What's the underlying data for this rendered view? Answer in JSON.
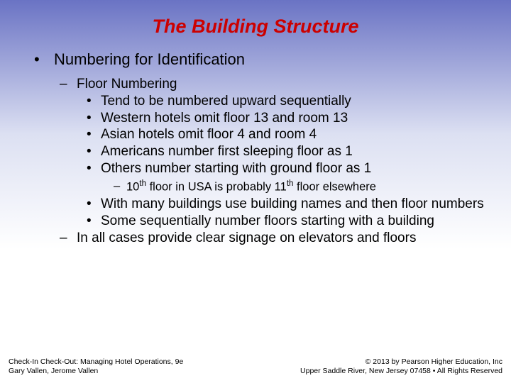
{
  "title_color": "#cc0000",
  "body_color": "#000000",
  "title": "The Building Structure",
  "bullets": {
    "l1_1": "Numbering for Identification",
    "l2_1": "Floor Numbering",
    "l3_1": "Tend to be numbered upward sequentially",
    "l3_2": "Western hotels omit floor 13 and room 13",
    "l3_3": "Asian hotels omit floor 4 and room 4",
    "l3_4": "Americans number first sleeping floor as 1",
    "l3_5": "Others number starting with ground floor as 1",
    "l4_1_pre": "10",
    "l4_1_sup1": "th",
    "l4_1_mid": " floor in USA is probably 11",
    "l4_1_sup2": "th",
    "l4_1_post": " floor elsewhere",
    "l3_6": "With many buildings use building names and then floor numbers",
    "l3_7": "Some sequentially number floors starting with a building",
    "l2_2": "In all cases provide clear signage on elevators and floors"
  },
  "footer": {
    "left_line1": "Check-In Check-Out: Managing Hotel Operations, 9e",
    "left_line2": "Gary Vallen, Jerome Vallen",
    "right_line1": "© 2013 by Pearson Higher Education, Inc",
    "right_line2": "Upper Saddle River, New Jersey 07458 • All Rights Reserved"
  },
  "gradient": {
    "top": "#6a73c4",
    "mid": "#dce0f2",
    "bottom": "#ffffff"
  }
}
